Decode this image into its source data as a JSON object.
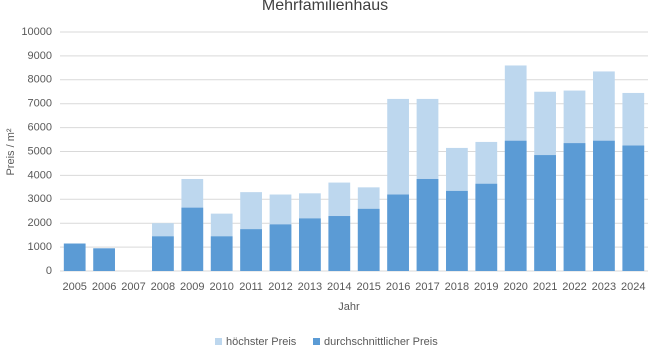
{
  "chart_data": {
    "type": "bar",
    "title": "Mehrfamilienhaus",
    "x_label": "Jahr",
    "y_label": "Preis / m²",
    "categories": [
      "2005",
      "2006",
      "2007",
      "2008",
      "2009",
      "2010",
      "2011",
      "2012",
      "2013",
      "2014",
      "2015",
      "2016",
      "2017",
      "2018",
      "2019",
      "2020",
      "2021",
      "2022",
      "2023",
      "2024"
    ],
    "series": [
      {
        "name": "höchster Preis",
        "color": "#bdd7ee",
        "values": [
          null,
          null,
          null,
          2000,
          3850,
          2400,
          3300,
          3200,
          3250,
          3700,
          3500,
          7200,
          7200,
          5150,
          5400,
          8600,
          7500,
          7550,
          8350,
          7450
        ]
      },
      {
        "name": "durchschnittlicher Preis",
        "color": "#5b9bd5",
        "values": [
          1150,
          950,
          null,
          1450,
          2650,
          1450,
          1750,
          1950,
          2200,
          2300,
          2600,
          3200,
          3850,
          3350,
          3650,
          5450,
          4850,
          5350,
          5450,
          5250
        ]
      }
    ],
    "ylim": [
      0,
      10000
    ],
    "yticks": [
      0,
      1000,
      2000,
      3000,
      4000,
      5000,
      6000,
      7000,
      8000,
      9000,
      10000
    ],
    "grid": true
  }
}
